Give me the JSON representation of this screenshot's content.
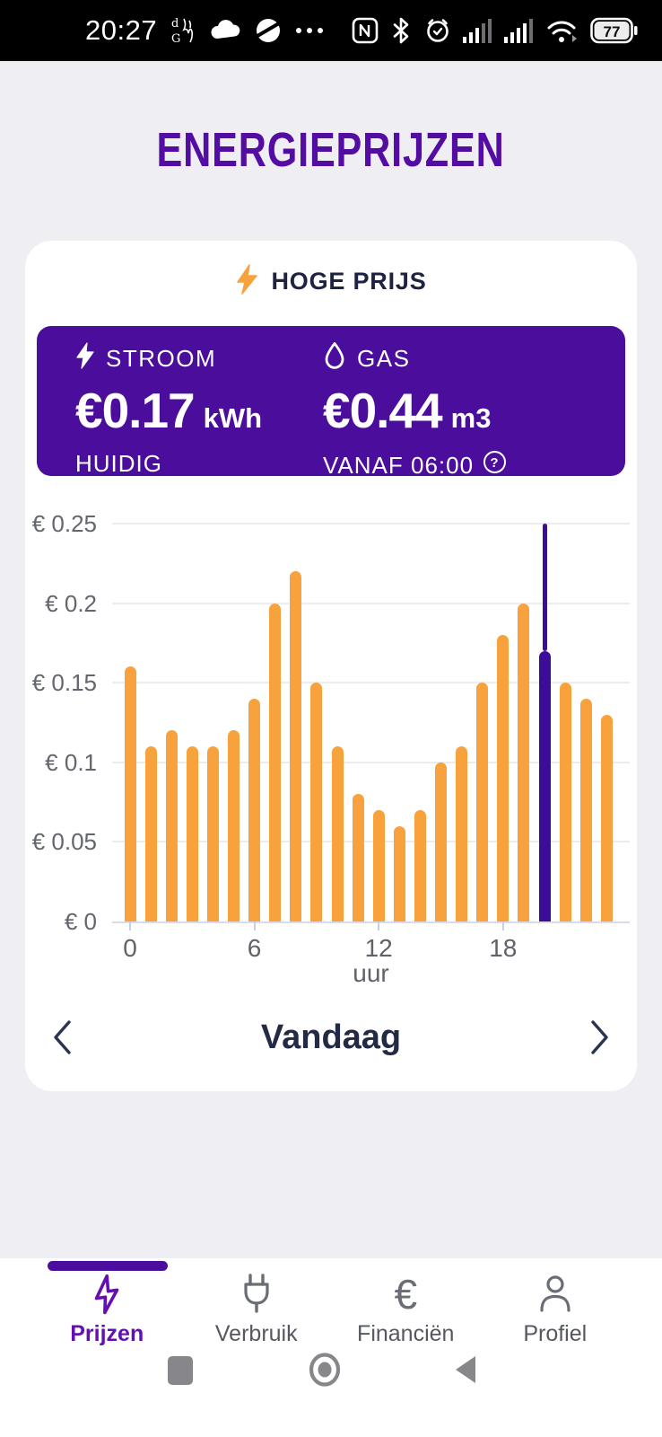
{
  "status_bar": {
    "time": "20:27",
    "battery_percent": "77",
    "left_icons": [
      "dg-badge",
      "cloud",
      "disc",
      "more-dots"
    ],
    "right_icons": [
      "nfc",
      "bluetooth",
      "alarm",
      "signal-1",
      "signal-2",
      "wifi",
      "battery"
    ]
  },
  "page": {
    "title": "ENERGIEPRIJZEN"
  },
  "price_card": {
    "header": {
      "label": "HOGE PRIJS"
    },
    "panel": {
      "electricity": {
        "label": "STROOM",
        "price": "€0.17",
        "unit": "kWh",
        "note": "HUIDIG"
      },
      "gas": {
        "label": "GAS",
        "price": "€0.44",
        "unit": "m3",
        "note": "VANAF 06:00"
      }
    },
    "period": {
      "label": "Vandaag"
    }
  },
  "chart_data": {
    "type": "bar",
    "x": [
      0,
      1,
      2,
      3,
      4,
      5,
      6,
      7,
      8,
      9,
      10,
      11,
      12,
      13,
      14,
      15,
      16,
      17,
      18,
      19,
      20,
      21,
      22,
      23
    ],
    "values": [
      0.16,
      0.11,
      0.12,
      0.11,
      0.11,
      0.12,
      0.14,
      0.2,
      0.22,
      0.15,
      0.11,
      0.08,
      0.07,
      0.06,
      0.07,
      0.1,
      0.11,
      0.15,
      0.18,
      0.2,
      0.17,
      0.15,
      0.14,
      0.13
    ],
    "current_hour": 20,
    "current_hour_value": 0.17,
    "marker_line_top": 0.25,
    "title": "",
    "xlabel": "uur",
    "ylabel": "",
    "xticks": [
      0,
      6,
      12,
      18
    ],
    "yticks": [
      0,
      0.05,
      0.1,
      0.15,
      0.2,
      0.25
    ],
    "ytick_labels": [
      "€ 0",
      "€ 0.05",
      "€ 0.1",
      "€ 0.15",
      "€ 0.2",
      "€ 0.25"
    ],
    "ylim": [
      0,
      0.25
    ],
    "grid": true,
    "legend": "none",
    "bar_color": "#F7A23C",
    "current_bar_color": "#3E0D97"
  },
  "tab_bar": {
    "active_tab": "Prijzen",
    "tabs": [
      {
        "label": "Prijzen",
        "icon": "lightning"
      },
      {
        "label": "Verbruik",
        "icon": "plug"
      },
      {
        "label": "Financiën",
        "icon": "euro"
      },
      {
        "label": "Profiel",
        "icon": "person"
      }
    ]
  },
  "android_nav": {
    "buttons": [
      "recents",
      "home",
      "back"
    ]
  },
  "colors": {
    "status_bar_bg": "#000000",
    "page_bg": "#EFEEF3",
    "card_bg": "#FFFFFF",
    "panel_purple": "#4A0D9C",
    "title_purple": "#530DA2",
    "active_tab_purple": "#640FAF",
    "tab_indicator_purple": "#4A0D9E",
    "bar_orange": "#F7A23C",
    "current_bar_purple": "#3E0D97",
    "navy_text": "#1D2340"
  }
}
